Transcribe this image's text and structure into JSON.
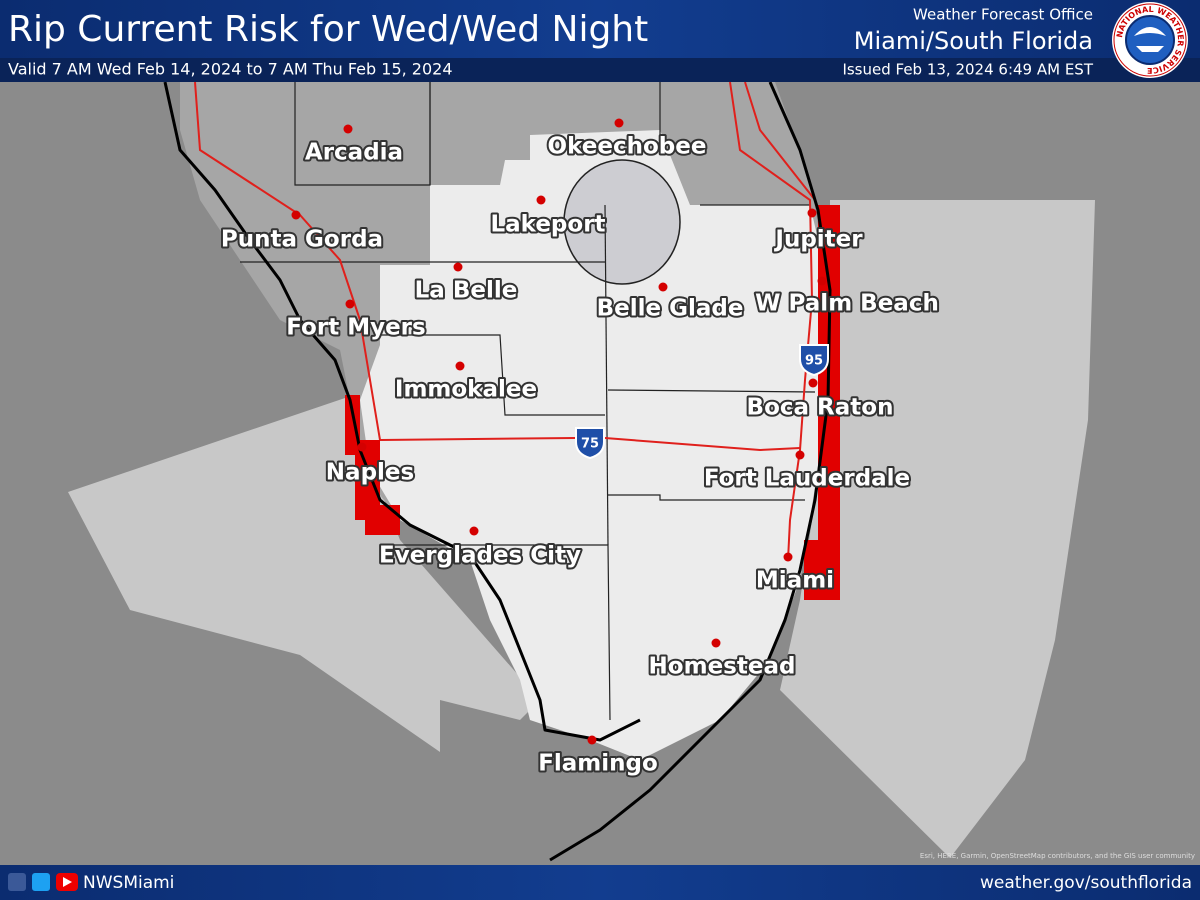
{
  "header": {
    "title": "Rip Current Risk for Wed/Wed Night",
    "valid": "Valid 7 AM Wed Feb 14, 2024 to 7 AM Thu Feb 15, 2024",
    "office_line1": "Weather Forecast Office",
    "office_line2": "Miami/South Florida",
    "issued": "Issued Feb 13, 2024 6:49 AM EST",
    "logo_text": "NATIONAL WEATHER SERVICE"
  },
  "cities": [
    "Arcadia",
    "Okeechobee",
    "Punta Gorda",
    "Lakeport",
    "Jupiter",
    "La Belle",
    "Belle Glade",
    "W Palm Beach",
    "Fort Myers",
    "Immokalee",
    "Boca Raton",
    "Naples",
    "Fort Lauderdale",
    "Everglades City",
    "Miami",
    "Homestead",
    "Flamingo"
  ],
  "highways": [
    "95",
    "75"
  ],
  "footer": {
    "handle": "NWSMiami",
    "url": "weather.gov/southflorida",
    "attribution": "Esri, HERE, Garmin, OpenStreetMap contributors, and the GIS user community"
  }
}
